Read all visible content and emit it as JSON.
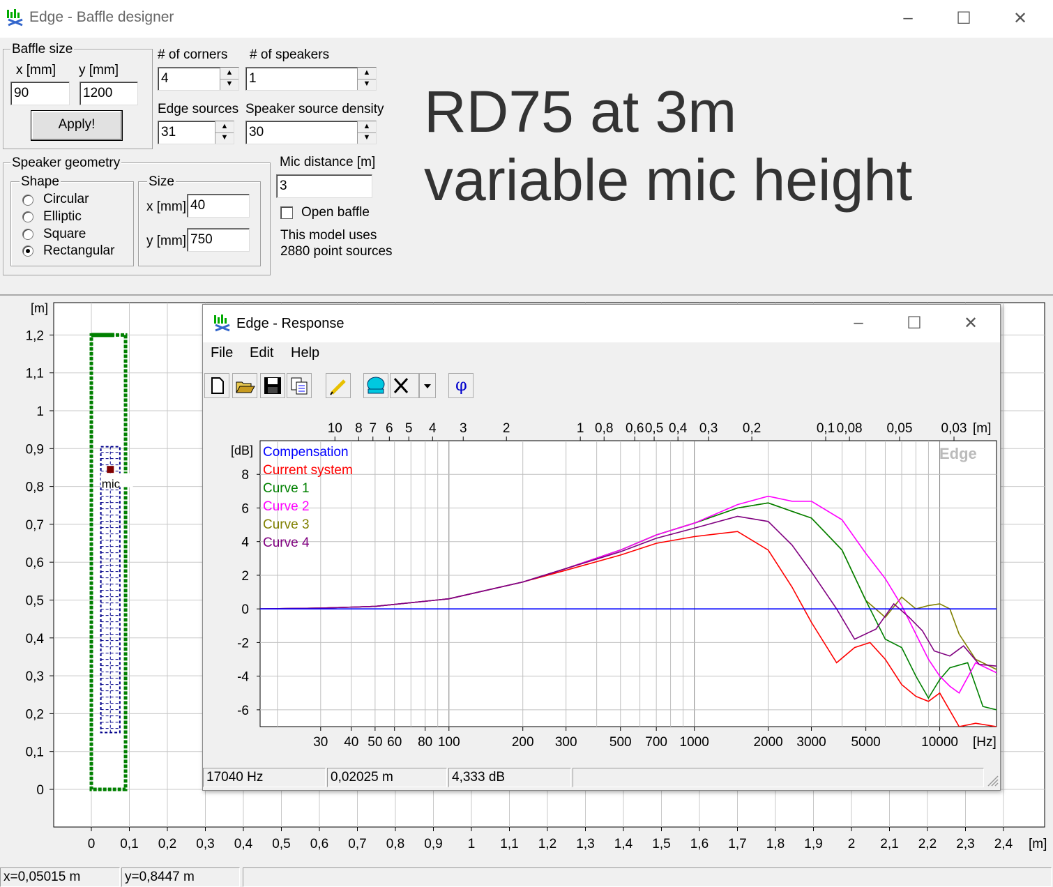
{
  "window": {
    "title": "Edge - Baffle designer",
    "minimize": "–",
    "maximize": "☐",
    "close": "✕"
  },
  "baffle_size": {
    "legend": "Baffle size",
    "x_label": "x [mm]",
    "y_label": "y [mm]",
    "x_value": "90",
    "y_value": "1200",
    "apply_label": "Apply!"
  },
  "corners": {
    "label": "# of corners",
    "value": "4"
  },
  "speakers": {
    "label": "# of speakers",
    "value": "1"
  },
  "edge_sources": {
    "label": "Edge sources",
    "value": "31"
  },
  "speaker_density": {
    "label": "Speaker source density",
    "value": "30"
  },
  "speaker_geometry": {
    "legend": "Speaker geometry",
    "shape_legend": "Shape",
    "shapes": [
      "Circular",
      "Elliptic",
      "Square",
      "Rectangular"
    ],
    "selected_shape": "Rectangular",
    "size_legend": "Size",
    "size_x_label": "x [mm]",
    "size_x_value": "40",
    "size_y_label": "y [mm]",
    "size_y_value": "750"
  },
  "mic": {
    "label": "Mic distance [m]",
    "value": "3"
  },
  "open_baffle": {
    "label": "Open baffle",
    "checked": false
  },
  "model_info": {
    "line1": "This model uses",
    "line2": "2880 point sources"
  },
  "overlay": {
    "line1": "RD75 at 3m",
    "line2": "variable mic height"
  },
  "baffle_plot": {
    "y_unit": "[m]",
    "x_unit": "[m]",
    "y_ticks": [
      "1,2",
      "1,1",
      "1",
      "0,9",
      "0,8",
      "0,7",
      "0,6",
      "0,5",
      "0,4",
      "0,3",
      "0,2",
      "0,1",
      "0"
    ],
    "x_ticks": [
      "0",
      "0,1",
      "0,2",
      "0,3",
      "0,4",
      "0,5",
      "0,6",
      "0,7",
      "0,8",
      "0,9",
      "1",
      "1,1",
      "1,2",
      "1,3",
      "1,4",
      "1,5",
      "1,6",
      "1,7",
      "1,8",
      "1,9",
      "2",
      "2,1",
      "2,2",
      "2,3",
      "2,4"
    ],
    "mic_label": "mic",
    "baffle_color": "#008000",
    "speaker_color": "#00008b"
  },
  "status_main": {
    "x": "x=0,05015 m",
    "y": "y=0,8447 m"
  },
  "response": {
    "title": "Edge - Response",
    "minimize": "–",
    "maximize": "☐",
    "close": "✕",
    "menu": [
      "File",
      "Edit",
      "Help"
    ],
    "toolbar_icons": [
      "new-icon",
      "open-icon",
      "save-icon",
      "copy-icon",
      "pen-icon",
      "speaker-icon",
      "clear-icon",
      "dropdown-icon",
      "phase-icon"
    ],
    "phase_glyph": "φ",
    "status": {
      "freq": "17040 Hz",
      "dist": "0,02025 m",
      "level": "4,333 dB"
    }
  },
  "chart_data": {
    "type": "line",
    "watermark": "Edge",
    "ylabel": "[dB]",
    "xlabel": "[Hz]",
    "top_axis_label": "[m]",
    "x_scale": "log",
    "xlim": [
      17,
      17040
    ],
    "ylim": [
      -7,
      10
    ],
    "grid": true,
    "legend_position": "top-left",
    "y_ticks": [
      -6,
      -4,
      -2,
      0,
      2,
      4,
      6,
      8
    ],
    "x_tick_labels": [
      "30",
      "40",
      "50",
      "60",
      "80",
      "100",
      "200",
      "300",
      "500",
      "700",
      "1000",
      "2000",
      "3000",
      "5000",
      "10000"
    ],
    "x_tick_values": [
      30,
      40,
      50,
      60,
      80,
      100,
      200,
      300,
      500,
      700,
      1000,
      2000,
      3000,
      5000,
      10000
    ],
    "top_tick_labels": [
      "10",
      "8",
      "7",
      "6",
      "5",
      "4",
      "3",
      "2",
      "1",
      "0,8",
      "0,6",
      "0,5",
      "0,4",
      "0,3",
      "0,2",
      "0,1",
      "0,08",
      "0,05",
      "0,03"
    ],
    "top_tick_values_m": [
      10,
      8,
      7,
      6,
      5,
      4,
      3,
      2,
      1,
      0.8,
      0.6,
      0.5,
      0.4,
      0.3,
      0.2,
      0.1,
      0.08,
      0.05,
      0.03
    ],
    "series": [
      {
        "name": "Compensation",
        "color": "#0000ff",
        "x": [
          17,
          17040
        ],
        "y": [
          0,
          0
        ]
      },
      {
        "name": "Current system",
        "color": "#ff0000",
        "x": [
          17,
          30,
          50,
          100,
          200,
          300,
          500,
          700,
          1000,
          1500,
          2000,
          2500,
          3000,
          3800,
          4500,
          5200,
          6000,
          7000,
          8000,
          9000,
          10000,
          12000,
          14000,
          17040
        ],
        "y": [
          0,
          0.05,
          0.15,
          0.6,
          1.6,
          2.3,
          3.2,
          3.9,
          4.3,
          4.6,
          3.5,
          1.3,
          -0.8,
          -3.2,
          -2.3,
          -2.0,
          -3.0,
          -4.5,
          -5.2,
          -5.5,
          -5.0,
          -7.0,
          -6.8,
          -7.0
        ]
      },
      {
        "name": "Curve 1",
        "color": "#008000",
        "x": [
          17,
          30,
          50,
          100,
          200,
          300,
          500,
          700,
          1000,
          1500,
          2000,
          2500,
          3000,
          4000,
          5000,
          6000,
          7000,
          8000,
          9000,
          10000,
          11000,
          13000,
          15000,
          17040
        ],
        "y": [
          0,
          0.05,
          0.15,
          0.6,
          1.6,
          2.4,
          3.5,
          4.4,
          5.1,
          6.0,
          6.3,
          5.8,
          5.4,
          3.5,
          0.5,
          -1.8,
          -2.3,
          -4.0,
          -5.3,
          -4.2,
          -3.5,
          -3.2,
          -5.8,
          -6.0
        ]
      },
      {
        "name": "Curve 2",
        "color": "#ff00ff",
        "x": [
          17,
          30,
          50,
          100,
          200,
          300,
          500,
          700,
          1000,
          1500,
          2000,
          2500,
          3000,
          4000,
          5000,
          6000,
          7000,
          8000,
          9000,
          10000,
          11000,
          12000,
          14000,
          17040
        ],
        "y": [
          0,
          0.05,
          0.15,
          0.6,
          1.6,
          2.4,
          3.5,
          4.4,
          5.1,
          6.2,
          6.7,
          6.4,
          6.4,
          5.3,
          3.3,
          1.8,
          0.2,
          -1.5,
          -3.0,
          -4.0,
          -4.6,
          -5.0,
          -3.2,
          -3.8
        ]
      },
      {
        "name": "Curve 3",
        "color": "#808000",
        "x": [
          17,
          30,
          50,
          100,
          200,
          300,
          500,
          700,
          1000,
          1500,
          2000,
          2500,
          3000,
          4000,
          5000,
          6000,
          7000,
          8000,
          9000,
          10000,
          11000,
          12000,
          14000,
          17040
        ],
        "y": [
          0,
          0.05,
          0.15,
          0.6,
          1.6,
          2.4,
          3.5,
          4.4,
          5.1,
          6.0,
          6.3,
          5.8,
          5.4,
          3.5,
          0.5,
          -0.5,
          0.7,
          0,
          0.2,
          0.3,
          0,
          -1.5,
          -3.0,
          -3.6
        ]
      },
      {
        "name": "Curve 4",
        "color": "#800080",
        "x": [
          17,
          30,
          50,
          100,
          200,
          300,
          500,
          700,
          1000,
          1500,
          2000,
          2500,
          3000,
          3800,
          4500,
          5500,
          6500,
          7500,
          8500,
          9500,
          11000,
          12500,
          14500,
          17040
        ],
        "y": [
          0,
          0.05,
          0.15,
          0.6,
          1.6,
          2.4,
          3.4,
          4.2,
          4.8,
          5.5,
          5.2,
          3.8,
          2.2,
          0.0,
          -1.8,
          -1.2,
          0.3,
          -0.5,
          -1.3,
          -2.5,
          -2.8,
          -2.2,
          -3.3,
          -3.4
        ]
      }
    ]
  }
}
